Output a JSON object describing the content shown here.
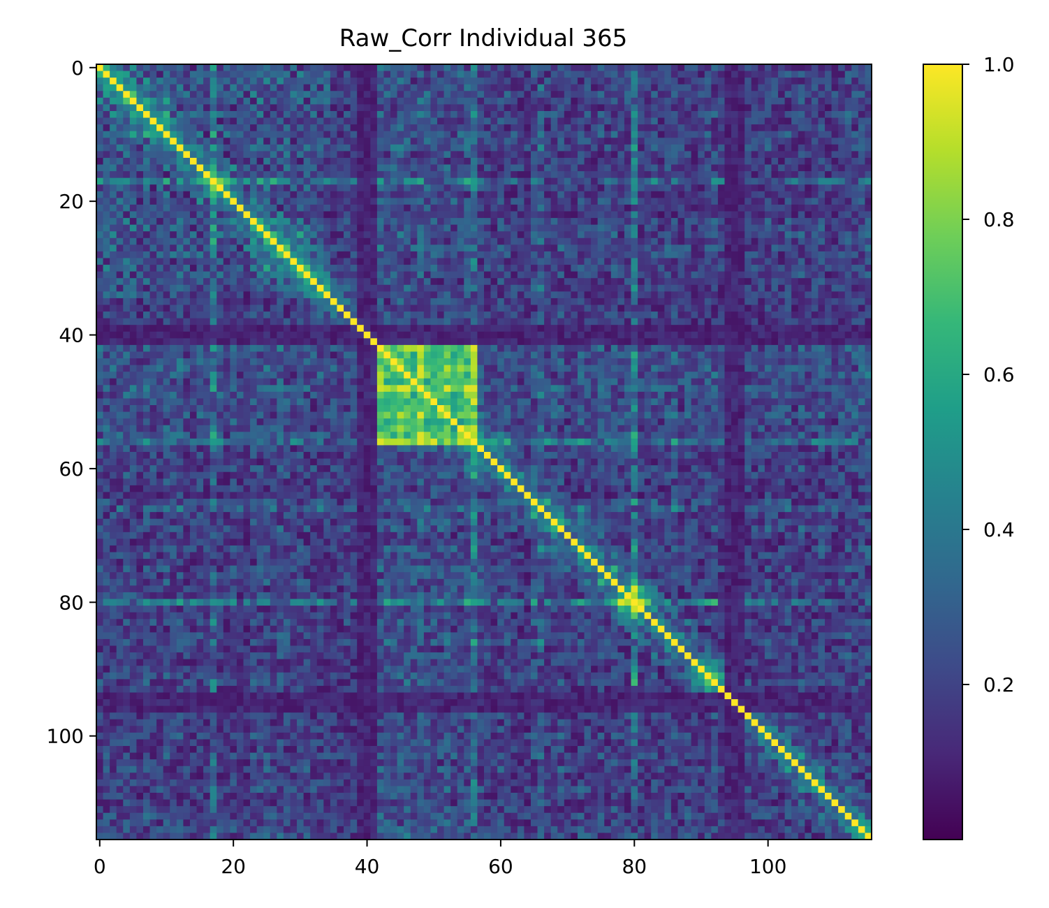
{
  "chart_data": {
    "type": "heatmap",
    "title": "Raw_Corr Individual 365",
    "matrix_size": 116,
    "x_ticks": [
      0,
      20,
      40,
      60,
      80,
      100
    ],
    "y_ticks": [
      0,
      20,
      40,
      60,
      80,
      100
    ],
    "colorbar_ticks": [
      {
        "value": 0.2,
        "label": "0.2"
      },
      {
        "value": 0.4,
        "label": "0.4"
      },
      {
        "value": 0.6,
        "label": "0.6"
      },
      {
        "value": 0.8,
        "label": "0.8"
      },
      {
        "value": 1.0,
        "label": "1.0"
      }
    ],
    "value_range": [
      0.0,
      1.0
    ],
    "colormap": "viridis",
    "colormap_stops": [
      "#440154",
      "#482878",
      "#3e4a89",
      "#31688e",
      "#26828e",
      "#1f9e89",
      "#35b779",
      "#6ece58",
      "#b5de2b",
      "#fde725"
    ],
    "diagonal_value": 1.0,
    "block_regions": [
      {
        "from": 42,
        "to": 56,
        "level": 0.72
      },
      {
        "from": 16,
        "to": 19,
        "level": 0.6
      },
      {
        "from": 78,
        "to": 82,
        "level": 0.65
      },
      {
        "from": 89,
        "to": 93,
        "level": 0.6
      }
    ],
    "bright_bands": [
      {
        "index": 17,
        "level": 0.55
      },
      {
        "index": 56,
        "level": 0.6
      },
      {
        "index": 66,
        "level": 0.55
      },
      {
        "index": 80,
        "level": 0.55
      }
    ],
    "dark_bands": [
      {
        "index": 40,
        "level": 0.05
      },
      {
        "index": 95,
        "level": 0.05
      }
    ]
  }
}
